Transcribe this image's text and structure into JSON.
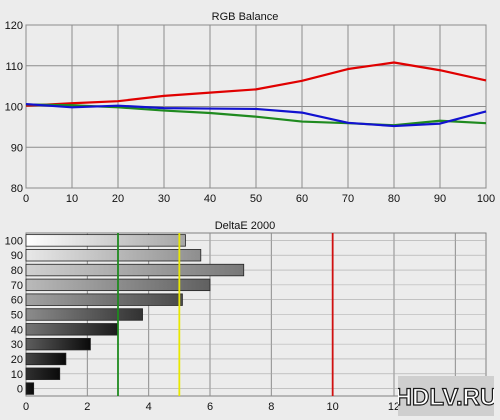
{
  "chart_data": [
    {
      "type": "line",
      "title": "RGB Balance",
      "xlabel": "",
      "ylabel": "",
      "x": [
        0,
        10,
        20,
        30,
        40,
        50,
        60,
        70,
        80,
        90,
        100
      ],
      "xlim": [
        0,
        100
      ],
      "ylim": [
        80,
        120
      ],
      "xticks": [
        "0",
        "10",
        "20",
        "30",
        "40",
        "50",
        "60",
        "70",
        "80",
        "90",
        "100"
      ],
      "yticks": [
        "80",
        "90",
        "100",
        "110",
        "120"
      ],
      "grid": true,
      "series": [
        {
          "color": "#e00000",
          "values": [
            100.2,
            100.8,
            101.3,
            102.6,
            103.4,
            104.2,
            106.3,
            109.2,
            110.8,
            108.9,
            106.4
          ]
        },
        {
          "color": "#1f8a1f",
          "values": [
            100.5,
            100.3,
            99.8,
            99.0,
            98.4,
            97.5,
            96.3,
            95.9,
            95.4,
            96.5,
            95.9
          ]
        },
        {
          "color": "#1212d0",
          "values": [
            100.6,
            99.8,
            100.2,
            99.6,
            99.5,
            99.4,
            98.5,
            96.0,
            95.2,
            95.8,
            98.8
          ]
        }
      ]
    },
    {
      "type": "bar",
      "orientation": "horizontal",
      "title": "DeltaE 2000",
      "xlabel": "",
      "ylabel": "",
      "categories": [
        "100",
        "90",
        "80",
        "70",
        "60",
        "50",
        "40",
        "30",
        "20",
        "10",
        "0"
      ],
      "values": [
        5.2,
        5.7,
        7.1,
        6.0,
        5.1,
        3.8,
        3.0,
        2.1,
        1.3,
        1.1,
        0.25
      ],
      "xlim": [
        0,
        15
      ],
      "xticks": [
        "0",
        "2",
        "4",
        "6",
        "8",
        "10",
        "12",
        "14"
      ],
      "grid": true,
      "reference_lines": [
        {
          "x": 3,
          "color": "#1f8a1f"
        },
        {
          "x": 5,
          "color": "#e8e800"
        },
        {
          "x": 10,
          "color": "#d01010"
        }
      ]
    }
  ],
  "watermark": {
    "text": "HDLV.RU"
  }
}
